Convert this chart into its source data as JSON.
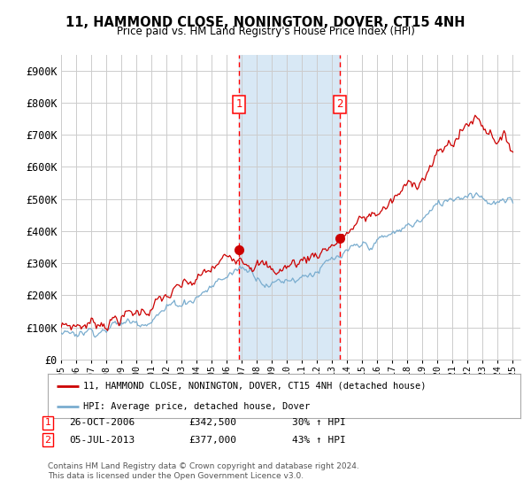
{
  "title": "11, HAMMOND CLOSE, NONINGTON, DOVER, CT15 4NH",
  "subtitle": "Price paid vs. HM Land Registry's House Price Index (HPI)",
  "ylim": [
    0,
    950000
  ],
  "yticks": [
    0,
    100000,
    200000,
    300000,
    400000,
    500000,
    600000,
    700000,
    800000,
    900000
  ],
  "ytick_labels": [
    "£0",
    "£100K",
    "£200K",
    "£300K",
    "£400K",
    "£500K",
    "£600K",
    "£700K",
    "£800K",
    "£900K"
  ],
  "sale1_x": 2006.82,
  "sale1_y": 342500,
  "sale1_label": "26-OCT-2006",
  "sale1_price": "£342,500",
  "sale1_hpi": "30% ↑ HPI",
  "sale2_x": 2013.5,
  "sale2_y": 377000,
  "sale2_label": "05-JUL-2013",
  "sale2_price": "£377,000",
  "sale2_hpi": "43% ↑ HPI",
  "legend_line1": "11, HAMMOND CLOSE, NONINGTON, DOVER, CT15 4NH (detached house)",
  "legend_line2": "HPI: Average price, detached house, Dover",
  "footer": "Contains HM Land Registry data © Crown copyright and database right 2024.\nThis data is licensed under the Open Government Licence v3.0.",
  "line_color_red": "#cc0000",
  "line_color_blue": "#7aadcf",
  "shaded_color": "#d8e8f5",
  "background_color": "#ffffff",
  "grid_color": "#cccccc",
  "xmin": 1995,
  "xmax": 2025.5,
  "xmin_data": 1995.0,
  "xmax_data": 2025.0
}
